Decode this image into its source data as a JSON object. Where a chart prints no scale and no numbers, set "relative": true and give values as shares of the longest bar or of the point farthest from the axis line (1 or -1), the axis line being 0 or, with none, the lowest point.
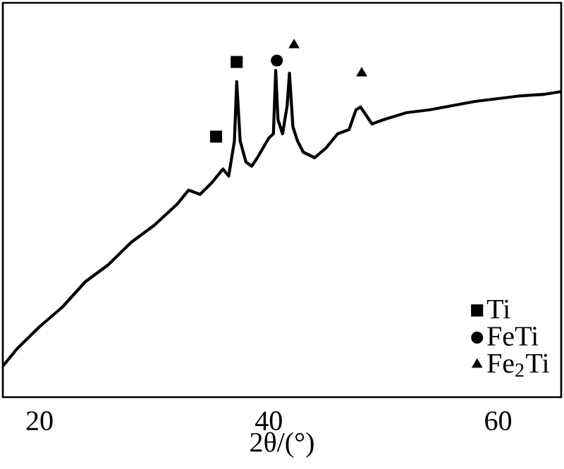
{
  "chart_data": {
    "type": "line",
    "relative": true,
    "xlabel": "2θ/(°)",
    "xlim": [
      16.8,
      65.5
    ],
    "xticks": [
      20,
      40,
      60
    ],
    "tick_labels": "x",
    "legend": "bottom right",
    "series": [
      {
        "color": "#000000",
        "x": [
          16.8,
          18,
          20,
          22,
          24,
          26,
          28,
          30,
          32,
          33,
          34,
          35,
          36,
          36.5,
          37,
          37.2,
          37.5,
          38,
          38.5,
          39,
          39.5,
          40,
          40.4,
          40.6,
          40.8,
          41.2,
          41.6,
          41.8,
          42.1,
          42.5,
          43,
          44,
          45,
          46,
          47,
          47.6,
          48,
          49,
          50,
          52,
          54,
          56,
          58,
          60,
          62,
          64,
          65.5
        ],
        "values": [
          0.088,
          0.136,
          0.2,
          0.256,
          0.328,
          0.376,
          0.44,
          0.488,
          0.548,
          0.588,
          0.576,
          0.608,
          0.648,
          0.628,
          0.728,
          0.896,
          0.728,
          0.668,
          0.656,
          0.68,
          0.708,
          0.736,
          0.748,
          0.928,
          0.788,
          0.748,
          0.828,
          0.92,
          0.768,
          0.728,
          0.696,
          0.68,
          0.708,
          0.748,
          0.76,
          0.816,
          0.824,
          0.776,
          0.788,
          0.808,
          0.816,
          0.828,
          0.84,
          0.848,
          0.856,
          0.86,
          0.868
        ]
      },
      {
        "name": "Ti",
        "type": "scatter",
        "marker": "square",
        "color": "#000000",
        "x": [
          35.4,
          37.2
        ],
        "values": [
          0.74,
          0.952
        ]
      },
      {
        "name": "FeTi",
        "type": "scatter",
        "marker": "circle",
        "color": "#000000",
        "x": [
          40.7
        ],
        "values": [
          0.956
        ]
      },
      {
        "name": "Fe$_{2}$Ti",
        "type": "scatter",
        "marker": "triangle",
        "color": "#000000",
        "x": [
          42.2,
          48.1
        ],
        "values": [
          1.0,
          0.92
        ]
      }
    ]
  }
}
